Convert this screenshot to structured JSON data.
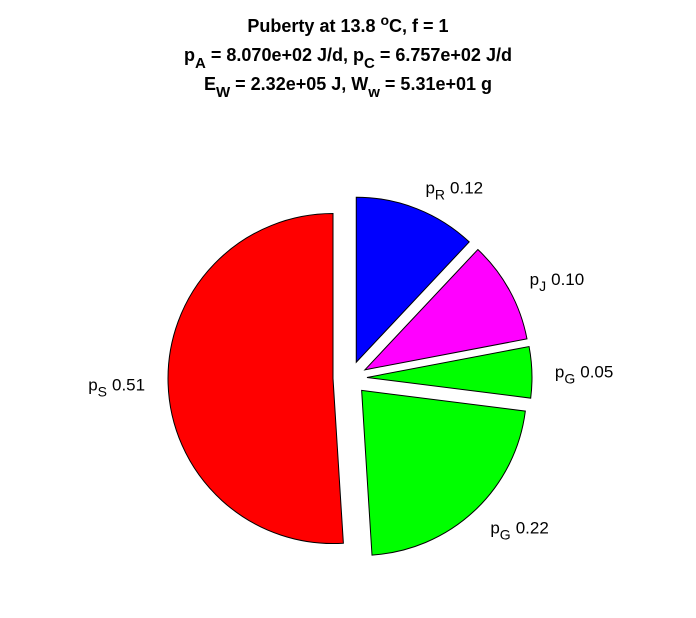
{
  "chart_data": {
    "type": "pie",
    "title_lines": [
      [
        {
          "text": "Puberty at 13.8 "
        },
        {
          "text": "o",
          "script": "sup"
        },
        {
          "text": "C, f = 1"
        }
      ],
      [
        {
          "text": "p"
        },
        {
          "text": "A",
          "script": "sub"
        },
        {
          "text": " = 8.070e+02 J/d,  p"
        },
        {
          "text": "C",
          "script": "sub"
        },
        {
          "text": " = 6.757e+02 J/d"
        }
      ],
      [
        {
          "text": "E"
        },
        {
          "text": "W",
          "script": "sub"
        },
        {
          "text": " = 2.32e+05 J, W"
        },
        {
          "text": "w",
          "script": "sub"
        },
        {
          "text": " = 5.31e+01 g"
        }
      ]
    ],
    "category_symbol": "p",
    "categories": [
      "R",
      "J",
      "G",
      "G",
      "S"
    ],
    "values": [
      0.12,
      0.1,
      0.05,
      0.22,
      0.51
    ],
    "value_labels": [
      "0.12",
      "0.10",
      "0.05",
      "0.22",
      "0.51"
    ],
    "colors": [
      "#0000ff",
      "#ff00ff",
      "#00ff00",
      "#00ff00",
      "#ff0000"
    ],
    "exploded": true
  }
}
